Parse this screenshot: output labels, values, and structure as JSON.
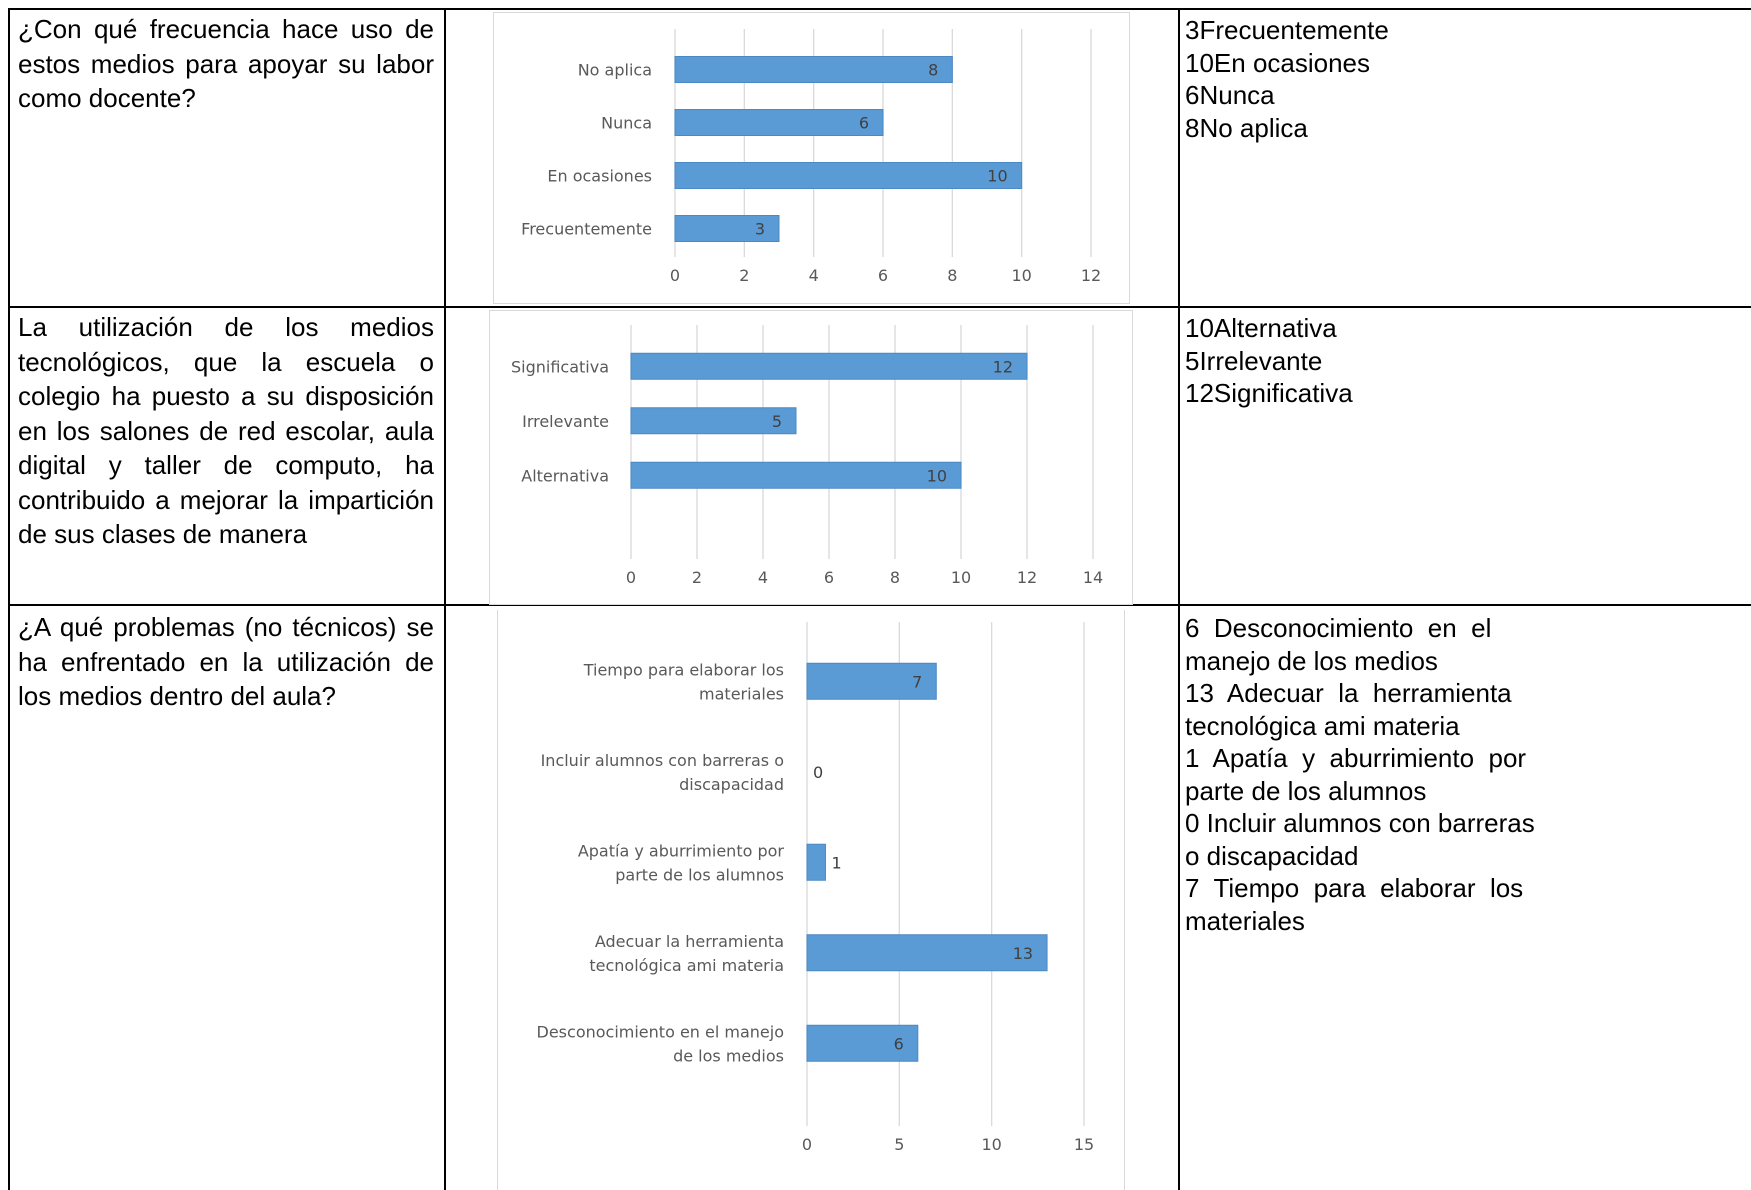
{
  "rows": [
    {
      "question": "¿Con qué frecuencia hace uso de estos medios para apoyar su labor como docente?",
      "answers": [
        "3Frecuentemente",
        "10En ocasiones",
        "6Nunca",
        "8No aplica"
      ]
    },
    {
      "question": "La utilización de los medios tecnológicos, que la escuela o colegio ha puesto a su disposición en los salones de red escolar, aula digital y taller de computo, ha contribuido a mejorar la impartición de sus clases de manera",
      "answers": [
        "10Alternativa",
        "5Irrelevante",
        "12Significativa"
      ]
    },
    {
      "question": "¿A qué problemas (no técnicos) se ha enfrentado en la utilización de los medios dentro del aula?",
      "answers": [
        "6  Desconocimiento  en  el",
        "manejo de los medios",
        "13  Adecuar  la  herramienta",
        "tecnológica ami materia",
        "1  Apatía  y  aburrimiento  por",
        "parte de los alumnos",
        "0 Incluir alumnos con barreras",
        "o discapacidad",
        "7  Tiempo  para  elaborar  los",
        "materiales"
      ]
    }
  ],
  "chart_data": [
    {
      "type": "bar",
      "orientation": "horizontal",
      "categories": [
        "Frecuentemente",
        "En ocasiones",
        "Nunca",
        "No aplica"
      ],
      "values": [
        3,
        10,
        6,
        8
      ],
      "xlim": [
        0,
        12
      ],
      "xticks": [
        "0",
        "2",
        "4",
        "6",
        "8",
        "10",
        "12"
      ],
      "grid": true,
      "bar_color": "#5b9bd5"
    },
    {
      "type": "bar",
      "orientation": "horizontal",
      "categories": [
        "Alternativa",
        "Irrelevante",
        "Significativa"
      ],
      "values": [
        10,
        5,
        12
      ],
      "xlim": [
        0,
        14
      ],
      "xticks": [
        "0",
        "2",
        "4",
        "6",
        "8",
        "10",
        "12",
        "14"
      ],
      "grid": true,
      "bar_color": "#5b9bd5"
    },
    {
      "type": "bar",
      "orientation": "horizontal",
      "categories": [
        [
          "Desconocimiento en el manejo",
          "de los medios"
        ],
        [
          "Adecuar la herramienta",
          "tecnológica ami materia"
        ],
        [
          "Apatía y aburrimiento por",
          "parte de los alumnos"
        ],
        [
          "Incluir alumnos con barreras o",
          "discapacidad"
        ],
        [
          "Tiempo para elaborar los",
          "materiales"
        ]
      ],
      "values": [
        6,
        13,
        1,
        0,
        7
      ],
      "xlim": [
        0,
        15
      ],
      "xticks": [
        "0",
        "5",
        "10",
        "15"
      ],
      "grid": true,
      "bar_color": "#5b9bd5"
    }
  ]
}
